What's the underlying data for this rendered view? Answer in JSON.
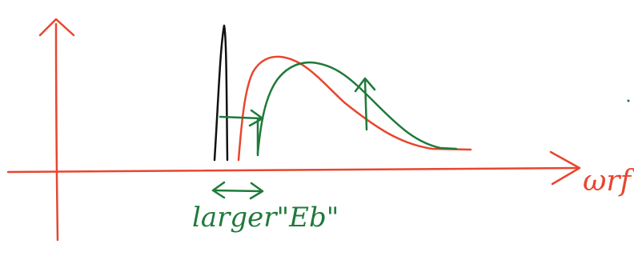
{
  "diagram": {
    "axis_label": "ωrf",
    "annotation_label": "larger\"Eb\"",
    "colors": {
      "axes": "#e8462e",
      "red_curve": "#e8462e",
      "green_curve": "#1f7a3a",
      "black_peak": "#111111"
    },
    "icons": {
      "shift_arrow": "double-arrow-horizontal-icon"
    }
  }
}
